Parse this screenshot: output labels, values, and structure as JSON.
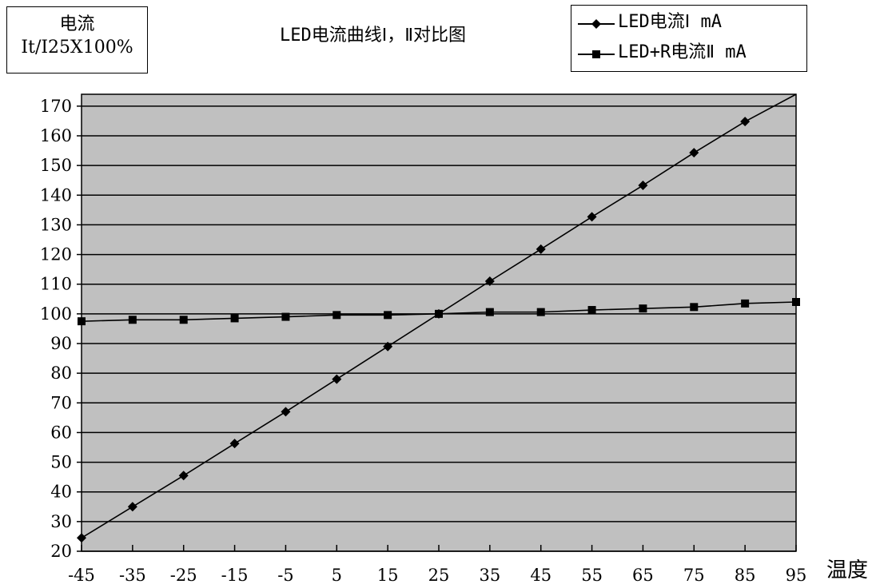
{
  "ylabel": {
    "line1": "电流",
    "line2": "It/I25X100%"
  },
  "title": "LED电流曲线Ⅰ，Ⅱ对比图",
  "xlabel": "温度",
  "legend": [
    {
      "label": "LED电流Ⅰ mA",
      "marker": "diamond"
    },
    {
      "label": "LED+R电流Ⅱ mA",
      "marker": "square"
    }
  ],
  "colors": {
    "plot_bg": "#c0c0c0",
    "line": "#000000",
    "grid": "#000000"
  },
  "chart_data": {
    "type": "line",
    "title": "LED电流曲线Ⅰ，Ⅱ对比图",
    "xlabel": "温度",
    "ylabel": "电流 It/I25X100%",
    "x": [
      -45,
      -35,
      -25,
      -15,
      -5,
      5,
      15,
      25,
      35,
      45,
      55,
      65,
      75,
      85,
      95
    ],
    "xticks": [
      "-45",
      "-35",
      "-25",
      "-15",
      "-5",
      "5",
      "15",
      "25",
      "35",
      "45",
      "55",
      "65",
      "75",
      "85",
      "95"
    ],
    "yticks": [
      20,
      30,
      40,
      50,
      60,
      70,
      80,
      90,
      100,
      110,
      120,
      130,
      140,
      150,
      160,
      170
    ],
    "ylim": [
      20,
      174
    ],
    "grid": true,
    "legend_position": "top-right",
    "series": [
      {
        "name": "LED电流Ⅰ mA",
        "marker": "diamond",
        "values": [
          24.5,
          35,
          45.5,
          56.3,
          67,
          78,
          89,
          100,
          111,
          121.8,
          132.7,
          143.3,
          154.3,
          164.8,
          null
        ],
        "line_end": {
          "x": 95,
          "y": 174
        }
      },
      {
        "name": "LED+R电流Ⅱ mA",
        "marker": "square",
        "values": [
          97.5,
          98,
          98,
          98.5,
          99,
          99.6,
          99.6,
          100,
          100.6,
          100.6,
          101.3,
          101.8,
          102.3,
          103.5,
          104
        ]
      }
    ]
  }
}
